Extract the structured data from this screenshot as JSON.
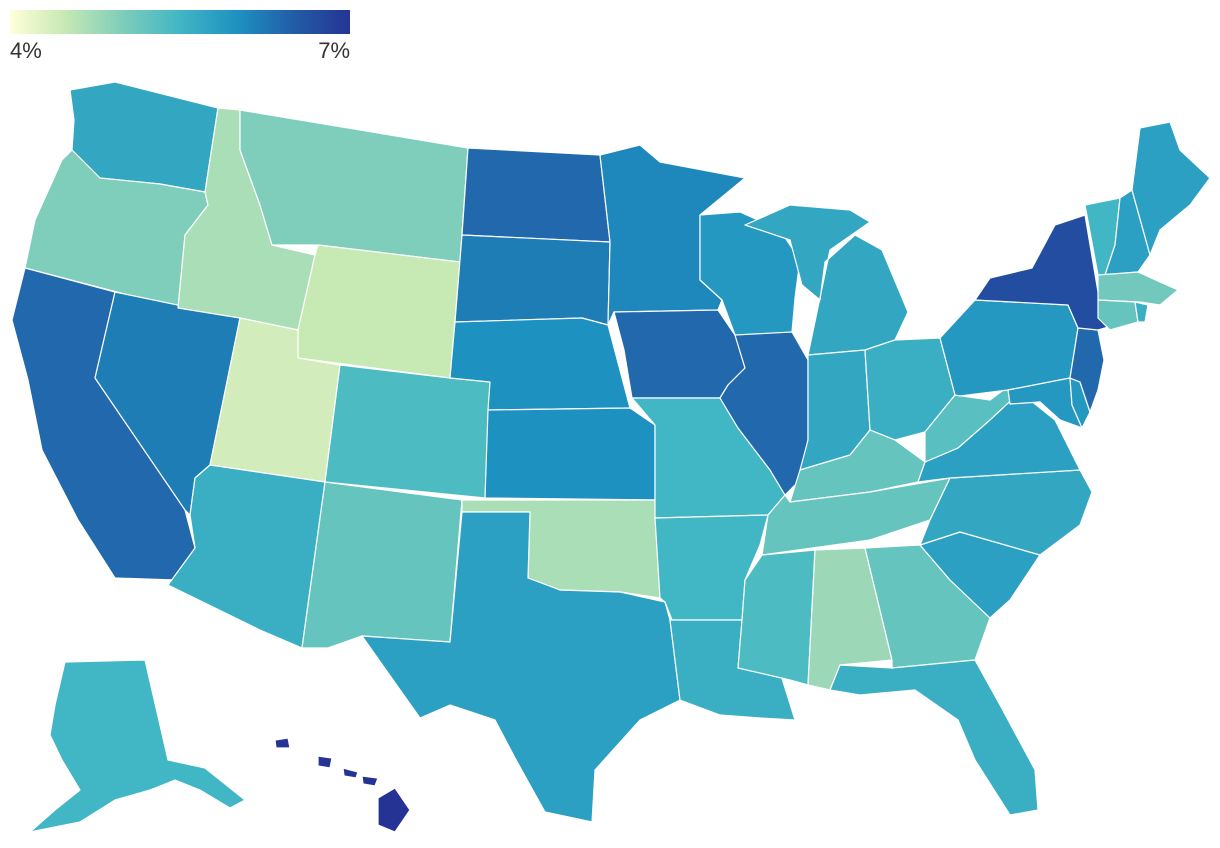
{
  "legend": {
    "min_label": "4%",
    "max_label": "7%",
    "min": 4,
    "max": 7,
    "colors": [
      "#ffffd9",
      "#c7e9b4",
      "#7fcdbb",
      "#41b6c4",
      "#1d91c0",
      "#225ea8",
      "#253494"
    ]
  },
  "map": {
    "type": "choropleth",
    "region": "United States",
    "states": [
      {
        "id": "WA",
        "value": 5.7
      },
      {
        "id": "OR",
        "value": 5.0
      },
      {
        "id": "CA",
        "value": 6.4
      },
      {
        "id": "NV",
        "value": 6.2
      },
      {
        "id": "ID",
        "value": 4.7
      },
      {
        "id": "MT",
        "value": 5.0
      },
      {
        "id": "WY",
        "value": 4.5
      },
      {
        "id": "UT",
        "value": 4.4
      },
      {
        "id": "AZ",
        "value": 5.6
      },
      {
        "id": "CO",
        "value": 5.4
      },
      {
        "id": "NM",
        "value": 5.2
      },
      {
        "id": "ND",
        "value": 6.4
      },
      {
        "id": "SD",
        "value": 6.2
      },
      {
        "id": "NE",
        "value": 6.0
      },
      {
        "id": "KS",
        "value": 6.0
      },
      {
        "id": "OK",
        "value": 4.7
      },
      {
        "id": "TX",
        "value": 5.8
      },
      {
        "id": "MN",
        "value": 6.1
      },
      {
        "id": "IA",
        "value": 6.4
      },
      {
        "id": "MO",
        "value": 5.5
      },
      {
        "id": "AR",
        "value": 5.5
      },
      {
        "id": "LA",
        "value": 5.6
      },
      {
        "id": "WI",
        "value": 5.9
      },
      {
        "id": "IL",
        "value": 6.4
      },
      {
        "id": "MI",
        "value": 5.7
      },
      {
        "id": "IN",
        "value": 5.7
      },
      {
        "id": "OH",
        "value": 5.6
      },
      {
        "id": "KY",
        "value": 5.2
      },
      {
        "id": "TN",
        "value": 5.2
      },
      {
        "id": "MS",
        "value": 5.4
      },
      {
        "id": "AL",
        "value": 4.8
      },
      {
        "id": "GA",
        "value": 5.2
      },
      {
        "id": "FL",
        "value": 5.6
      },
      {
        "id": "SC",
        "value": 5.8
      },
      {
        "id": "NC",
        "value": 5.7
      },
      {
        "id": "VA",
        "value": 5.8
      },
      {
        "id": "WV",
        "value": 5.3
      },
      {
        "id": "PA",
        "value": 5.9
      },
      {
        "id": "NY",
        "value": 6.7
      },
      {
        "id": "VT",
        "value": 5.5
      },
      {
        "id": "NH",
        "value": 5.8
      },
      {
        "id": "ME",
        "value": 5.8
      },
      {
        "id": "MA",
        "value": 5.1
      },
      {
        "id": "CT",
        "value": 5.2
      },
      {
        "id": "RI",
        "value": 5.6
      },
      {
        "id": "NJ",
        "value": 6.4
      },
      {
        "id": "DE",
        "value": 5.9
      },
      {
        "id": "MD",
        "value": 5.9
      },
      {
        "id": "AK",
        "value": 5.5
      },
      {
        "id": "HI",
        "value": 7.0
      }
    ]
  }
}
